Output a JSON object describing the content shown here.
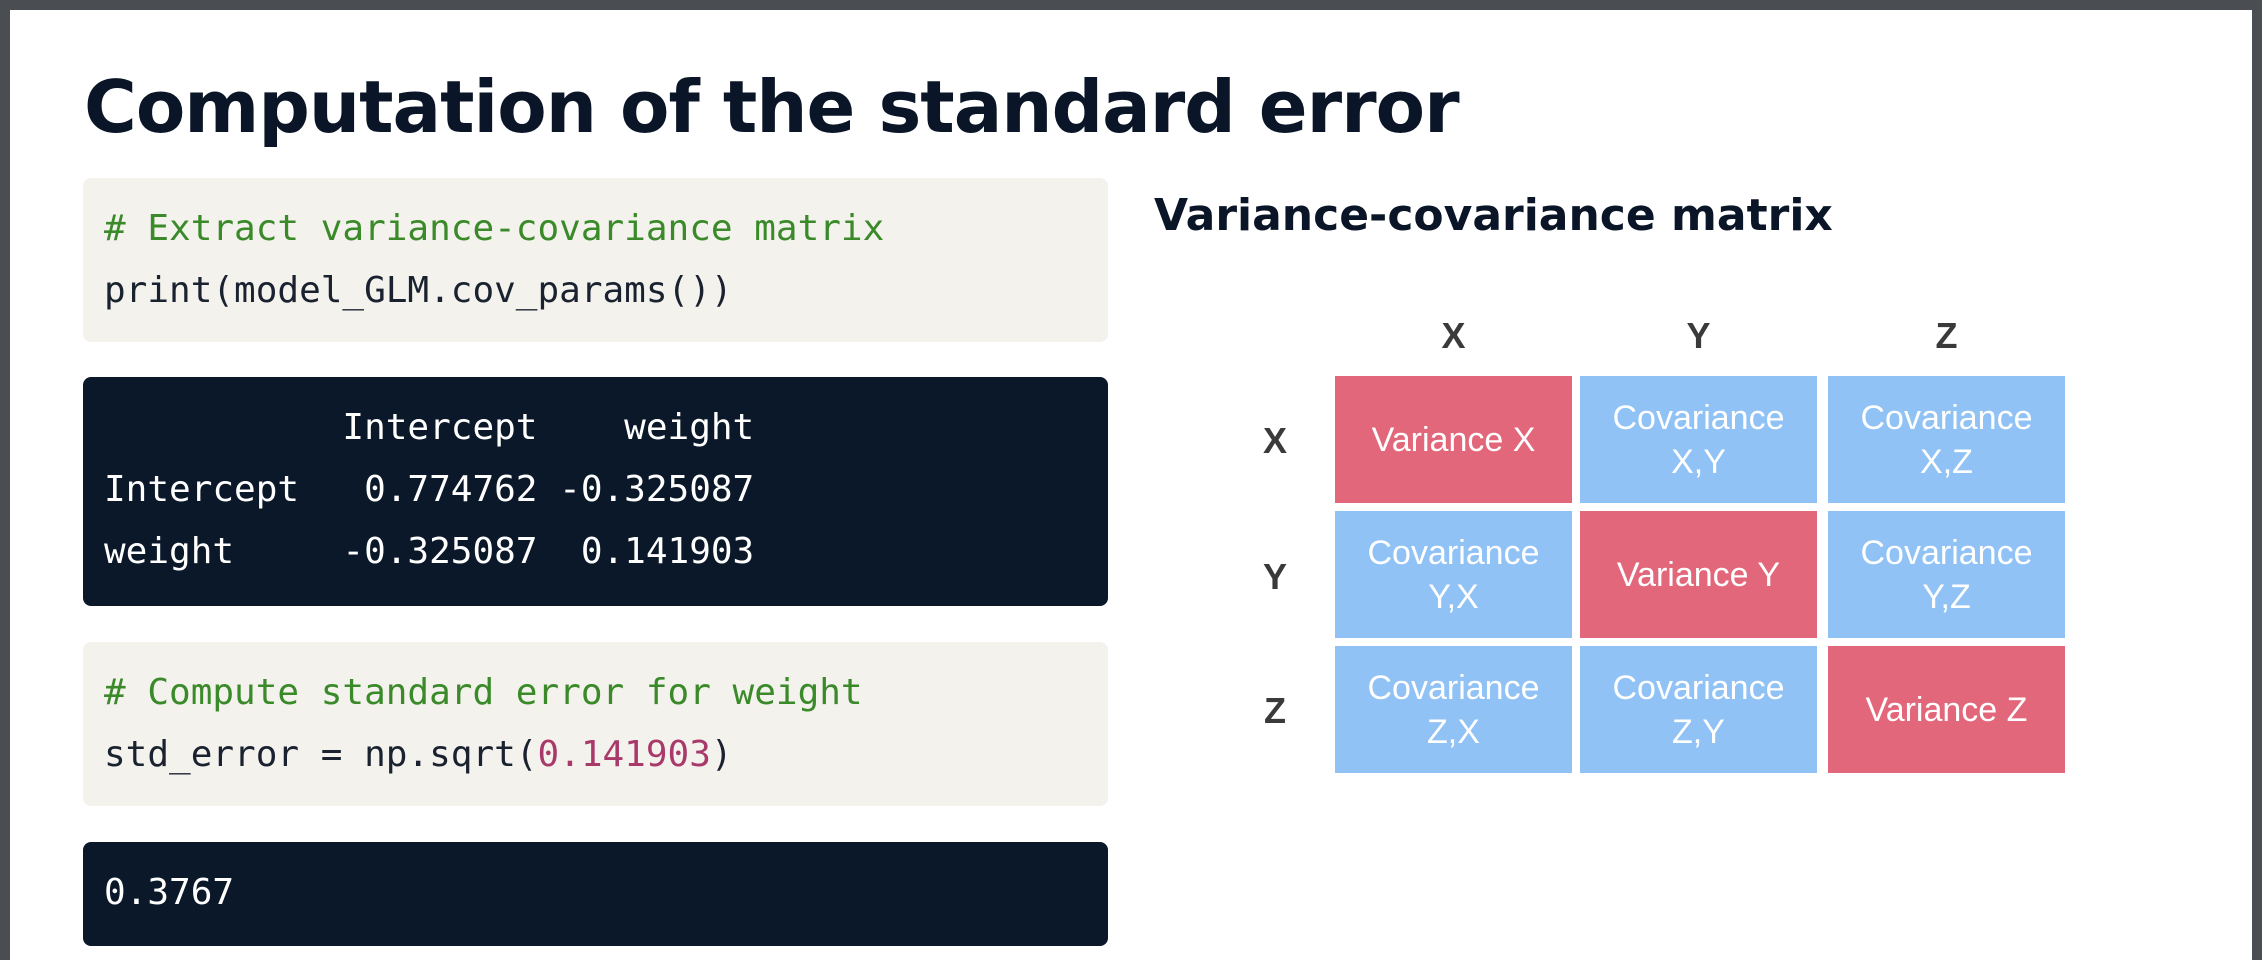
{
  "slide": {
    "title": "Computation of the standard error"
  },
  "code_blocks": {
    "cov_code": {
      "comment": "# Extract variance-covariance matrix",
      "code": "print(model_GLM.cov_params())"
    },
    "cov_output": {
      "lines": [
        "           Intercept    weight",
        "Intercept   0.774762 -0.325087",
        "weight     -0.325087  0.141903"
      ]
    },
    "se_code": {
      "comment": "# Compute standard error for weight",
      "code_prefix": "std_error = np.sqrt(",
      "code_number": "0.141903",
      "code_suffix": ")"
    },
    "se_output": {
      "value": "0.3767"
    }
  },
  "matrix": {
    "title": "Variance-covariance matrix",
    "columns": [
      "X",
      "Y",
      "Z"
    ],
    "rows": [
      "X",
      "Y",
      "Z"
    ],
    "cells": [
      [
        "Variance X",
        "Covariance\nX,Y",
        "Covariance\nX,Z"
      ],
      [
        "Covariance\nY,X",
        "Variance Y",
        "Covariance\nY,Z"
      ],
      [
        "Covariance\nZ,X",
        "Covariance\nZ,Y",
        "Variance Z"
      ]
    ],
    "colors": {
      "variance": "#e3677a",
      "covariance": "#90c2f5"
    }
  }
}
